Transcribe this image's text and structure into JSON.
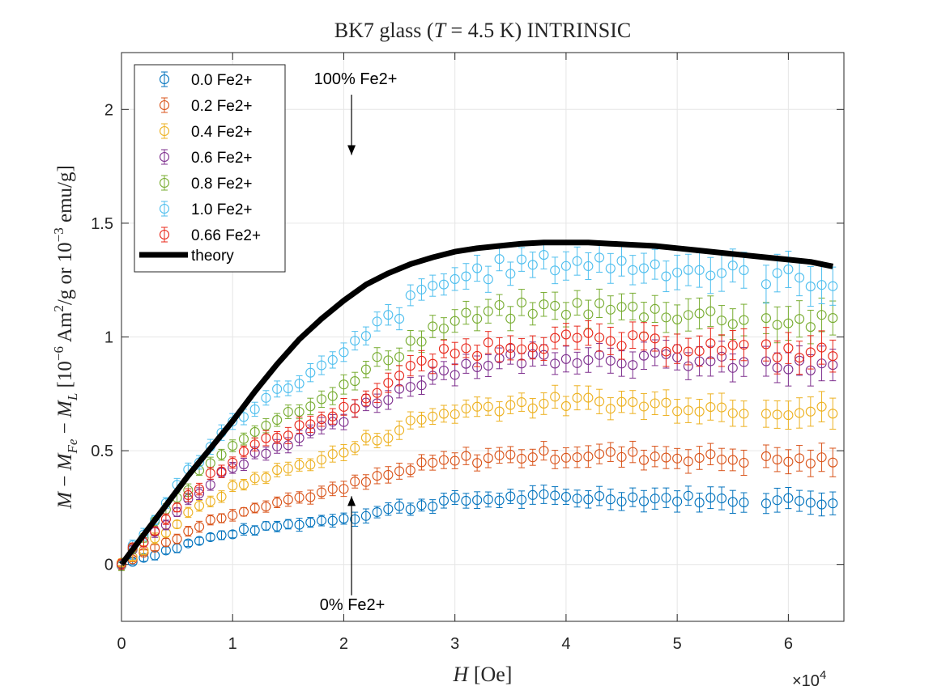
{
  "chart_data": {
    "type": "scatter",
    "title": "BK7 glass (T = 4.5 K) INTRINSIC",
    "title_parts": {
      "pre": "BK7 glass (",
      "var": "T",
      "mid": " = 4.5 K) ",
      "post": "INTRINSIC"
    },
    "xlabel": "H [Oe]",
    "xlabel_parts": {
      "var": "H",
      "unit": " [Oe]"
    },
    "ylabel": "M − M_Fe − M_L [10^−6 Am^2/g or 10^−3 emu/g]",
    "ylabel_parts": {
      "m": "M",
      "minus1": " − ",
      "mfe": "M",
      "fe_sub": "Fe",
      "minus2": " − ",
      "ml": "M",
      "l_sub": "L",
      "open": " [10",
      "exp1": "−6",
      "am": " Am",
      "exp2": "2",
      "g_or": "/g or 10",
      "exp3": "−3",
      "emu": " emu/g]"
    },
    "x_multiplier": {
      "base": "×10",
      "exp": "4"
    },
    "xlim": [
      0,
      6.5
    ],
    "ylim": [
      -0.25,
      2.25
    ],
    "x_ticks": [
      0,
      1,
      2,
      3,
      4,
      5,
      6
    ],
    "x_tick_labels": [
      "0",
      "1",
      "2",
      "3",
      "4",
      "5",
      "6"
    ],
    "y_ticks": [
      0,
      0.5,
      1,
      1.5,
      2
    ],
    "y_tick_labels": [
      "0",
      "0.5",
      "1",
      "1.5",
      "2"
    ],
    "grid": true,
    "legend_position": "top-left",
    "series": [
      {
        "name": "0.0 Fe2+",
        "color": "#0072BD",
        "scale": 0.3
      },
      {
        "name": "0.2 Fe2+",
        "color": "#D95319",
        "scale": 0.49
      },
      {
        "name": "0.4 Fe2+",
        "color": "#EDB120",
        "scale": 0.725
      },
      {
        "name": "0.6 Fe2+",
        "color": "#7E2F8E",
        "scale": 0.93
      },
      {
        "name": "0.8 Fe2+",
        "color": "#77AC30",
        "scale": 1.145
      },
      {
        "name": "1.0 Fe2+",
        "color": "#4DBEEE",
        "scale": 1.35
      },
      {
        "name": "0.66 Fe2+",
        "color": "#E8271A",
        "scale": 1.0
      }
    ],
    "theory": {
      "name": "theory",
      "color": "#000000",
      "x": [
        0,
        0.2,
        0.4,
        0.6,
        0.8,
        1.0,
        1.2,
        1.4,
        1.6,
        1.8,
        2.0,
        2.2,
        2.4,
        2.6,
        2.8,
        3.0,
        3.2,
        3.4,
        3.6,
        3.8,
        4.0,
        4.2,
        4.4,
        4.6,
        4.8,
        5.0,
        5.2,
        5.4,
        5.6,
        5.8,
        6.0,
        6.2,
        6.4
      ],
      "y": [
        0,
        0.13,
        0.26,
        0.39,
        0.51,
        0.63,
        0.76,
        0.88,
        0.99,
        1.08,
        1.16,
        1.23,
        1.28,
        1.32,
        1.35,
        1.375,
        1.39,
        1.4,
        1.41,
        1.415,
        1.415,
        1.415,
        1.41,
        1.405,
        1.4,
        1.39,
        1.38,
        1.37,
        1.36,
        1.35,
        1.34,
        1.33,
        1.31
      ]
    },
    "reference_x": [
      0,
      0.05,
      0.1,
      0.2,
      0.3,
      0.4,
      0.6,
      0.8,
      1.0,
      1.2,
      1.4,
      1.6,
      1.8,
      2.0,
      2.2,
      2.4,
      2.6,
      2.8,
      3.0,
      3.2,
      3.4,
      3.6,
      3.8,
      4.0,
      4.2,
      4.4,
      4.6,
      4.8,
      5.0,
      5.2,
      5.4,
      5.6,
      5.8,
      6.0,
      6.2,
      6.4
    ],
    "reference_y": [
      0,
      0.03,
      0.06,
      0.1,
      0.155,
      0.2,
      0.3,
      0.39,
      0.46,
      0.52,
      0.56,
      0.6,
      0.64,
      0.68,
      0.74,
      0.8,
      0.85,
      0.9,
      0.93,
      0.95,
      0.965,
      0.975,
      0.98,
      0.985,
      0.985,
      0.98,
      0.975,
      0.97,
      0.965,
      0.96,
      0.95,
      0.945,
      0.94,
      0.935,
      0.93,
      0.925
    ],
    "x_step": 0.1,
    "gap_x_range": [
      5.65,
      5.75
    ],
    "annotations": [
      {
        "text": "100% Fe2+",
        "x": 2.07,
        "y": 1.8,
        "text_y": 2.2
      },
      {
        "text": "0% Fe2+",
        "x": 2.07,
        "y": 0.3,
        "text_y": -0.15
      }
    ]
  }
}
